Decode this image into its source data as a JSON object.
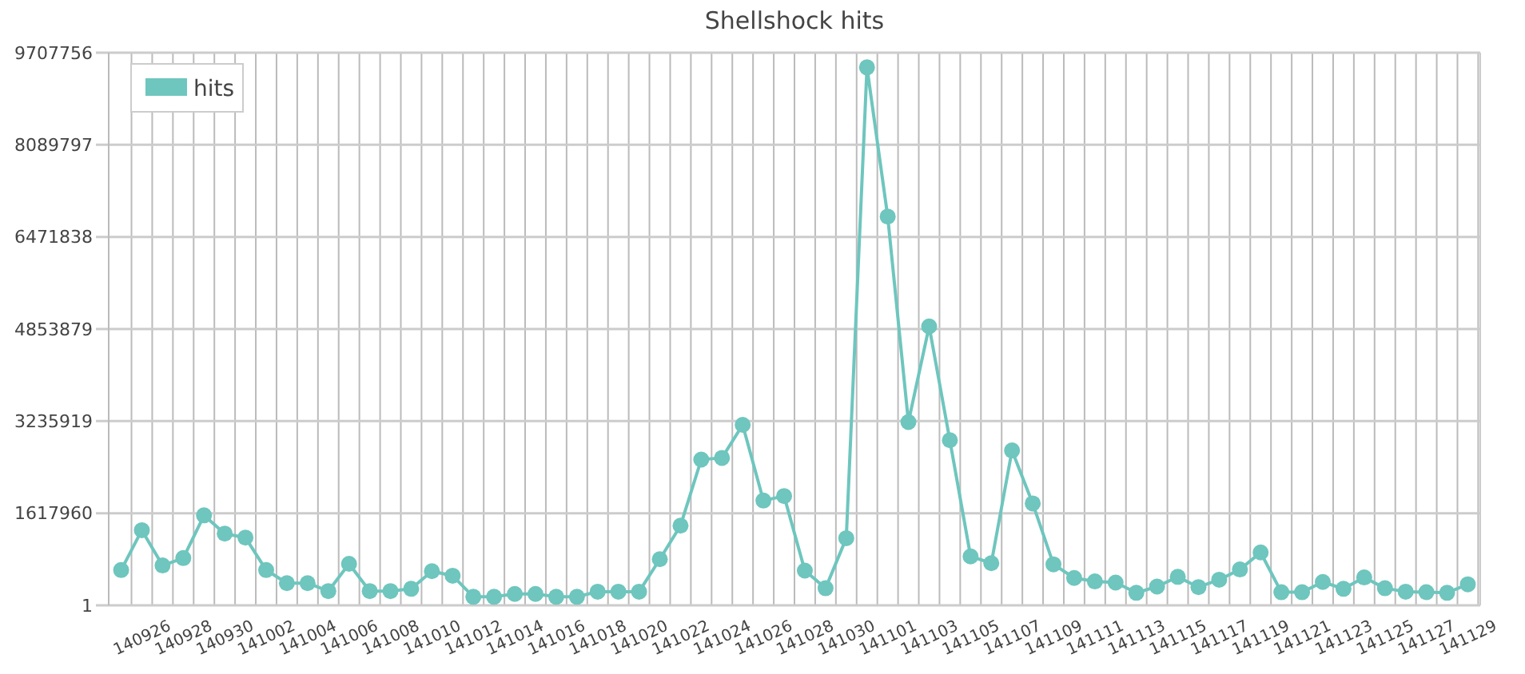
{
  "chart_data": {
    "type": "line",
    "title": "Shellshock hits",
    "categories": [
      null,
      "140926",
      null,
      "140928",
      null,
      "140930",
      null,
      "141002",
      null,
      "141004",
      null,
      "141006",
      null,
      "141008",
      null,
      "141010",
      null,
      "141012",
      null,
      "141014",
      null,
      "141016",
      null,
      "141018",
      null,
      "141020",
      null,
      "141022",
      null,
      "141024",
      null,
      "141026",
      null,
      "141028",
      null,
      "141030",
      null,
      "141101",
      null,
      "141103",
      null,
      "141105",
      null,
      "141107",
      null,
      "141109",
      null,
      "141111",
      null,
      "141113",
      null,
      "141115",
      null,
      "141117",
      null,
      "141119",
      null,
      "141121",
      null,
      "141123",
      null,
      "141125",
      null,
      "141127",
      null,
      "141129"
    ],
    "series": [
      {
        "name": "hits",
        "color": "#6ec6be",
        "values": [
          620000,
          1320000,
          700000,
          830000,
          1580000,
          1260000,
          1190000,
          620000,
          390000,
          390000,
          250000,
          730000,
          250000,
          250000,
          290000,
          600000,
          520000,
          150000,
          150000,
          200000,
          200000,
          150000,
          150000,
          240000,
          240000,
          240000,
          810000,
          1400000,
          2560000,
          2590000,
          3170000,
          1840000,
          1920000,
          610000,
          300000,
          1180000,
          9450000,
          6830000,
          3220000,
          4900000,
          2900000,
          860000,
          740000,
          2720000,
          1790000,
          720000,
          480000,
          420000,
          400000,
          220000,
          330000,
          500000,
          320000,
          450000,
          630000,
          930000,
          230000,
          230000,
          410000,
          290000,
          490000,
          300000,
          240000,
          230000,
          220000,
          370000
        ]
      }
    ],
    "ylim": [
      1,
      9707756
    ],
    "yticks": [
      1,
      1617960,
      3235919,
      4853879,
      6471838,
      8089797,
      9707756
    ],
    "grid": true,
    "legend": "top left",
    "marker": "circle",
    "line_style": "solid"
  }
}
